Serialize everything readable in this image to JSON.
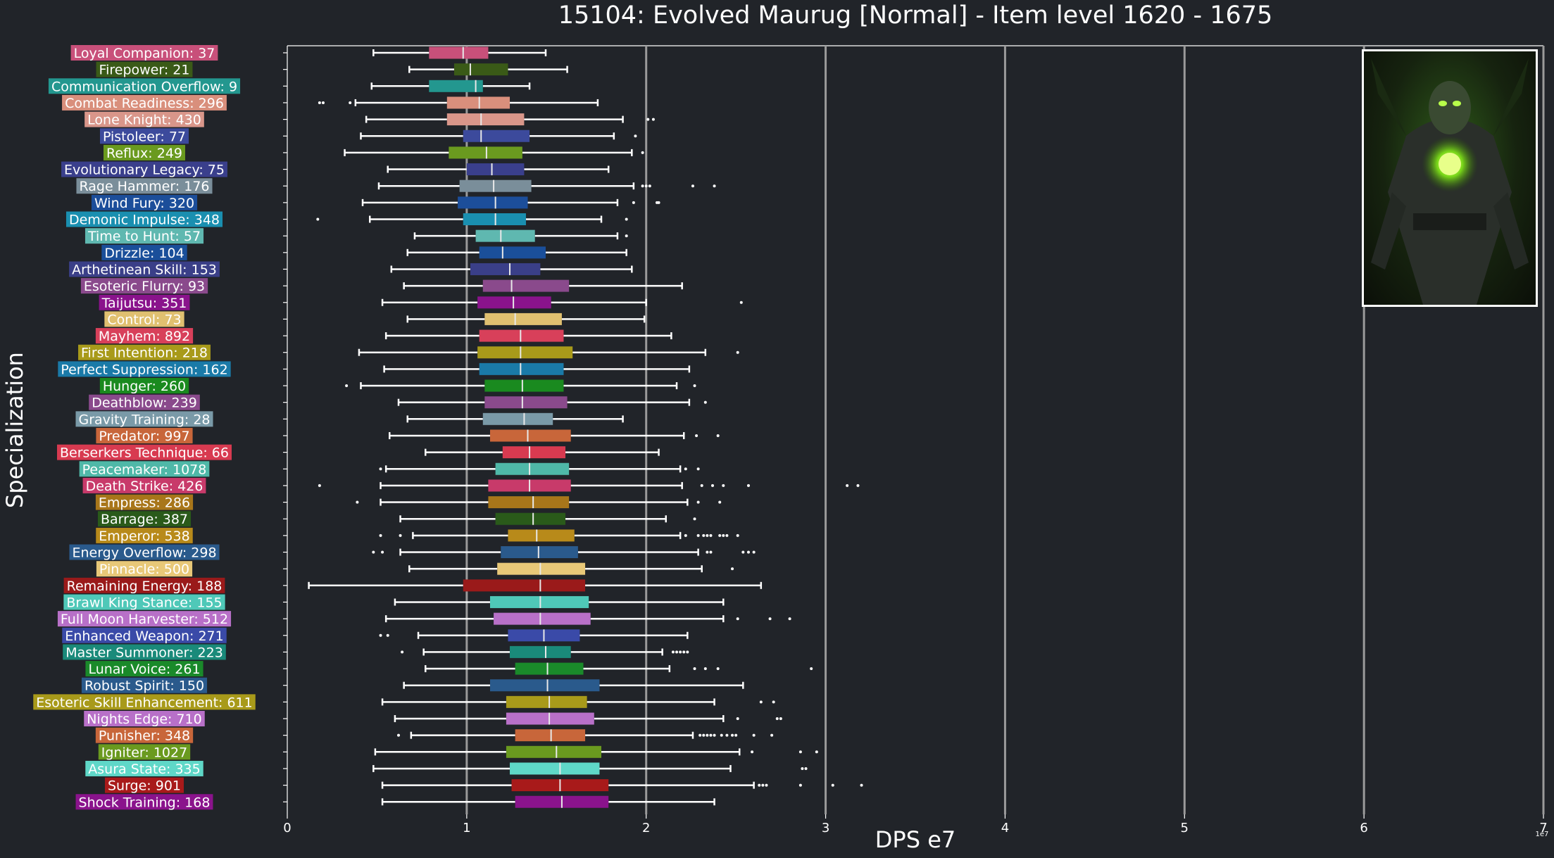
{
  "chart_data": {
    "type": "boxplot",
    "title": "15104: Evolved Maurug [Normal] - Item level 1620 - 1675",
    "xlabel": "DPS e7",
    "ylabel": "Specialization",
    "offset_label": "1e7",
    "xlim": [
      0,
      7
    ],
    "xticks": [
      "0",
      "1",
      "2",
      "3",
      "4",
      "5",
      "6",
      "7"
    ],
    "grid": "vertical lines at major x ticks",
    "series": [
      {
        "label": "Loyal Companion: 37",
        "color": "#c8507a",
        "min": 0.48,
        "q1": 0.79,
        "median": 0.98,
        "q3": 1.12,
        "max": 1.44,
        "outliers": []
      },
      {
        "label": "Firepower: 21",
        "color": "#3a5a17",
        "min": 0.68,
        "q1": 0.93,
        "median": 1.02,
        "q3": 1.23,
        "max": 1.56,
        "outliers": []
      },
      {
        "label": "Communication Overflow: 9",
        "color": "#23978f",
        "min": 0.47,
        "q1": 0.79,
        "median": 1.05,
        "q3": 1.09,
        "max": 1.35,
        "outliers": []
      },
      {
        "label": "Combat Readiness: 296",
        "color": "#d98f7c",
        "min": 0.38,
        "q1": 0.89,
        "median": 1.07,
        "q3": 1.24,
        "max": 1.73,
        "outliers": [
          0.18,
          0.2,
          0.35
        ]
      },
      {
        "label": "Lone Knight: 430",
        "color": "#d9968a",
        "min": 0.44,
        "q1": 0.89,
        "median": 1.08,
        "q3": 1.32,
        "max": 1.87,
        "outliers": [
          2.01,
          2.04
        ]
      },
      {
        "label": "Pistoleer: 77",
        "color": "#3c4a9c",
        "min": 0.41,
        "q1": 0.98,
        "median": 1.08,
        "q3": 1.35,
        "max": 1.82,
        "outliers": [
          1.94
        ]
      },
      {
        "label": "Reflux: 249",
        "color": "#6a9a1f",
        "min": 0.32,
        "q1": 0.9,
        "median": 1.11,
        "q3": 1.31,
        "max": 1.92,
        "outliers": [
          1.98
        ]
      },
      {
        "label": "Evolutionary Legacy: 75",
        "color": "#3a3f8c",
        "min": 0.56,
        "q1": 1.0,
        "median": 1.14,
        "q3": 1.32,
        "max": 1.79,
        "outliers": []
      },
      {
        "label": "Rage Hammer: 176",
        "color": "#7a8e9a",
        "min": 0.51,
        "q1": 0.96,
        "median": 1.15,
        "q3": 1.36,
        "max": 1.93,
        "outliers": [
          1.98,
          2.0,
          2.02,
          2.26,
          2.38
        ]
      },
      {
        "label": "Wind Fury: 320",
        "color": "#1c4e9a",
        "min": 0.42,
        "q1": 0.95,
        "median": 1.16,
        "q3": 1.34,
        "max": 1.84,
        "outliers": [
          1.93,
          2.06,
          2.07
        ]
      },
      {
        "label": "Demonic Impulse: 348",
        "color": "#1a8fb0",
        "min": 0.46,
        "q1": 0.98,
        "median": 1.16,
        "q3": 1.33,
        "max": 1.75,
        "outliers": [
          0.17,
          1.89
        ]
      },
      {
        "label": "Time to Hunt: 57",
        "color": "#5fb8b0",
        "min": 0.71,
        "q1": 1.05,
        "median": 1.19,
        "q3": 1.38,
        "max": 1.84,
        "outliers": [
          1.89
        ]
      },
      {
        "label": "Drizzle: 104",
        "color": "#1a4f9a",
        "min": 0.67,
        "q1": 1.07,
        "median": 1.2,
        "q3": 1.44,
        "max": 1.89,
        "outliers": []
      },
      {
        "label": "Arthetinean Skill: 153",
        "color": "#3a3f88",
        "min": 0.58,
        "q1": 1.02,
        "median": 1.24,
        "q3": 1.41,
        "max": 1.92,
        "outliers": []
      },
      {
        "label": "Esoteric Flurry: 93",
        "color": "#8a4a8c",
        "min": 0.65,
        "q1": 1.09,
        "median": 1.25,
        "q3": 1.57,
        "max": 2.2,
        "outliers": []
      },
      {
        "label": "Taijutsu: 351",
        "color": "#8a138c",
        "min": 0.53,
        "q1": 1.06,
        "median": 1.26,
        "q3": 1.47,
        "max": 2.0,
        "outliers": [
          2.53
        ]
      },
      {
        "label": "Control: 73",
        "color": "#e0c070",
        "min": 0.67,
        "q1": 1.1,
        "median": 1.27,
        "q3": 1.53,
        "max": 1.99,
        "outliers": []
      },
      {
        "label": "Mayhem: 892",
        "color": "#d8405a",
        "min": 0.55,
        "q1": 1.07,
        "median": 1.3,
        "q3": 1.54,
        "max": 2.14,
        "outliers": []
      },
      {
        "label": "First Intention: 218",
        "color": "#a89a1a",
        "min": 0.4,
        "q1": 1.06,
        "median": 1.3,
        "q3": 1.59,
        "max": 2.33,
        "outliers": [
          2.51
        ]
      },
      {
        "label": "Perfect Suppression: 162",
        "color": "#1a7aa8",
        "min": 0.54,
        "q1": 1.07,
        "median": 1.3,
        "q3": 1.54,
        "max": 2.24,
        "outliers": []
      },
      {
        "label": "Hunger: 260",
        "color": "#1a8a1f",
        "min": 0.41,
        "q1": 1.1,
        "median": 1.31,
        "q3": 1.54,
        "max": 2.17,
        "outliers": [
          0.33,
          2.27
        ]
      },
      {
        "label": "Deathblow: 239",
        "color": "#8a4a8c",
        "min": 0.62,
        "q1": 1.1,
        "median": 1.31,
        "q3": 1.56,
        "max": 2.24,
        "outliers": [
          2.33
        ]
      },
      {
        "label": "Gravity Training: 28",
        "color": "#7a9aa8",
        "min": 0.67,
        "q1": 1.09,
        "median": 1.32,
        "q3": 1.48,
        "max": 1.87,
        "outliers": []
      },
      {
        "label": "Predator: 997",
        "color": "#c8663a",
        "min": 0.57,
        "q1": 1.13,
        "median": 1.34,
        "q3": 1.58,
        "max": 2.21,
        "outliers": [
          2.28,
          2.4
        ]
      },
      {
        "label": "Berserkers Technique: 66",
        "color": "#d83a50",
        "min": 0.77,
        "q1": 1.2,
        "median": 1.35,
        "q3": 1.55,
        "max": 2.07,
        "outliers": []
      },
      {
        "label": "Peacemaker: 1078",
        "color": "#4fb8a8",
        "min": 0.55,
        "q1": 1.16,
        "median": 1.35,
        "q3": 1.57,
        "max": 2.19,
        "outliers": [
          0.52,
          2.22,
          2.29
        ]
      },
      {
        "label": "Death Strike: 426",
        "color": "#c83a6a",
        "min": 0.52,
        "q1": 1.12,
        "median": 1.35,
        "q3": 1.58,
        "max": 2.2,
        "outliers": [
          0.18,
          2.31,
          2.37,
          2.43,
          2.57,
          3.12,
          3.18
        ]
      },
      {
        "label": "Empress: 286",
        "color": "#a8761a",
        "min": 0.52,
        "q1": 1.12,
        "median": 1.37,
        "q3": 1.57,
        "max": 2.23,
        "outliers": [
          0.39,
          2.29,
          2.41
        ]
      },
      {
        "label": "Barrage: 387",
        "color": "#2a5a1a",
        "min": 0.63,
        "q1": 1.16,
        "median": 1.37,
        "q3": 1.55,
        "max": 2.11,
        "outliers": [
          2.27
        ]
      },
      {
        "label": "Emperor: 538",
        "color": "#b88a1a",
        "min": 0.7,
        "q1": 1.23,
        "median": 1.39,
        "q3": 1.6,
        "max": 2.19,
        "outliers": [
          0.52,
          0.63,
          2.22,
          2.29,
          2.32,
          2.34,
          2.36,
          2.41,
          2.43,
          2.45,
          2.51
        ]
      },
      {
        "label": "Energy Overflow: 298",
        "color": "#2a5a8c",
        "min": 0.63,
        "q1": 1.19,
        "median": 1.4,
        "q3": 1.62,
        "max": 2.29,
        "outliers": [
          0.48,
          0.53,
          2.34,
          2.36,
          2.54,
          2.57,
          2.6
        ]
      },
      {
        "label": "Pinnacle: 500",
        "color": "#e8c878",
        "min": 0.68,
        "q1": 1.17,
        "median": 1.41,
        "q3": 1.66,
        "max": 2.31,
        "outliers": [
          2.48
        ]
      },
      {
        "label": "Remaining Energy: 188",
        "color": "#9a1a1a",
        "min": 0.12,
        "q1": 0.98,
        "median": 1.41,
        "q3": 1.66,
        "max": 2.64,
        "outliers": []
      },
      {
        "label": "Brawl King Stance: 155",
        "color": "#4fc8b8",
        "min": 0.6,
        "q1": 1.13,
        "median": 1.41,
        "q3": 1.68,
        "max": 2.43,
        "outliers": []
      },
      {
        "label": "Full Moon Harvester: 512",
        "color": "#b870c8",
        "min": 0.55,
        "q1": 1.15,
        "median": 1.41,
        "q3": 1.69,
        "max": 2.43,
        "outliers": [
          2.51,
          2.69,
          2.8
        ]
      },
      {
        "label": "Enhanced Weapon: 271",
        "color": "#3a4aa8",
        "min": 0.73,
        "q1": 1.23,
        "median": 1.43,
        "q3": 1.63,
        "max": 2.23,
        "outliers": [
          0.52,
          0.56
        ]
      },
      {
        "label": "Master Summoner: 223",
        "color": "#1a8a7a",
        "min": 0.76,
        "q1": 1.24,
        "median": 1.44,
        "q3": 1.58,
        "max": 2.09,
        "outliers": [
          0.64,
          2.15,
          2.17,
          2.19,
          2.21,
          2.23
        ]
      },
      {
        "label": "Lunar Voice: 261",
        "color": "#1a8a2a",
        "min": 0.77,
        "q1": 1.27,
        "median": 1.45,
        "q3": 1.65,
        "max": 2.13,
        "outliers": [
          2.27,
          2.33,
          2.4,
          2.92
        ]
      },
      {
        "label": "Robust Spirit: 150",
        "color": "#2a5a8c",
        "min": 0.65,
        "q1": 1.13,
        "median": 1.45,
        "q3": 1.74,
        "max": 2.54,
        "outliers": []
      },
      {
        "label": "Esoteric Skill Enhancement: 611",
        "color": "#a89a1a",
        "min": 0.53,
        "q1": 1.22,
        "median": 1.46,
        "q3": 1.67,
        "max": 2.38,
        "outliers": [
          2.64,
          2.71
        ]
      },
      {
        "label": "Nights Edge: 710",
        "color": "#b870c8",
        "min": 0.6,
        "q1": 1.22,
        "median": 1.46,
        "q3": 1.71,
        "max": 2.43,
        "outliers": [
          2.51,
          2.73,
          2.75
        ]
      },
      {
        "label": "Punisher: 348",
        "color": "#c8663a",
        "min": 0.69,
        "q1": 1.27,
        "median": 1.47,
        "q3": 1.66,
        "max": 2.26,
        "outliers": [
          0.62,
          2.3,
          2.32,
          2.34,
          2.36,
          2.38,
          2.42,
          2.45,
          2.48,
          2.5,
          2.6,
          2.7
        ]
      },
      {
        "label": "Igniter: 1027",
        "color": "#6a9a1f",
        "min": 0.49,
        "q1": 1.22,
        "median": 1.5,
        "q3": 1.75,
        "max": 2.52,
        "outliers": [
          2.59,
          2.86,
          2.95
        ]
      },
      {
        "label": "Asura State: 335",
        "color": "#5fd8c8",
        "min": 0.48,
        "q1": 1.24,
        "median": 1.52,
        "q3": 1.74,
        "max": 2.47,
        "outliers": [
          2.87,
          2.89
        ]
      },
      {
        "label": "Surge: 901",
        "color": "#a81a1a",
        "min": 0.53,
        "q1": 1.25,
        "median": 1.52,
        "q3": 1.79,
        "max": 2.6,
        "outliers": [
          2.63,
          2.65,
          2.67,
          2.86,
          3.04,
          3.2
        ]
      },
      {
        "label": "Shock Training: 168",
        "color": "#8a138c",
        "min": 0.53,
        "q1": 1.27,
        "median": 1.53,
        "q3": 1.79,
        "max": 2.38,
        "outliers": []
      }
    ]
  }
}
